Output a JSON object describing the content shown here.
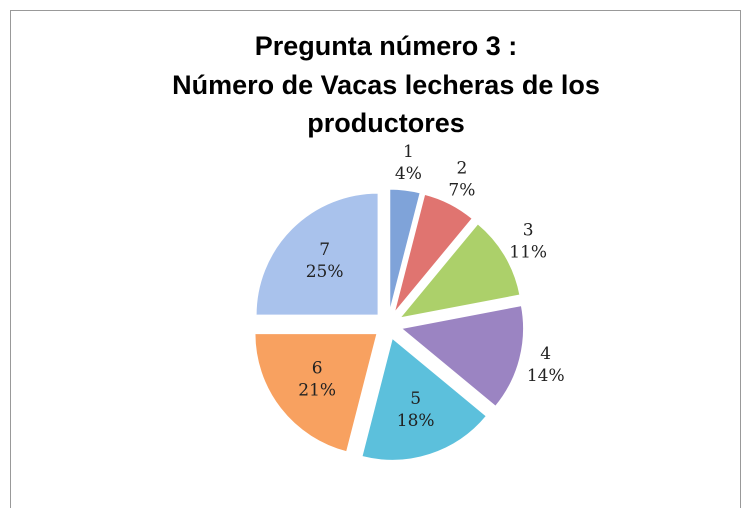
{
  "chart_data": {
    "type": "pie",
    "title": [
      "Pregunta número 3 :",
      "Número de Vacas lecheras de los",
      "productores"
    ],
    "categories": [
      "1",
      "2",
      "3",
      "4",
      "5",
      "6",
      "7"
    ],
    "values": [
      4,
      7,
      11,
      14,
      18,
      21,
      25
    ],
    "value_labels": [
      "4%",
      "7%",
      "11%",
      "14%",
      "18%",
      "21%",
      "25%"
    ],
    "colors": [
      "#7fa3d9",
      "#e07470",
      "#acd06a",
      "#9b84c2",
      "#5cc0dc",
      "#f8a160",
      "#a9c2ec"
    ]
  }
}
